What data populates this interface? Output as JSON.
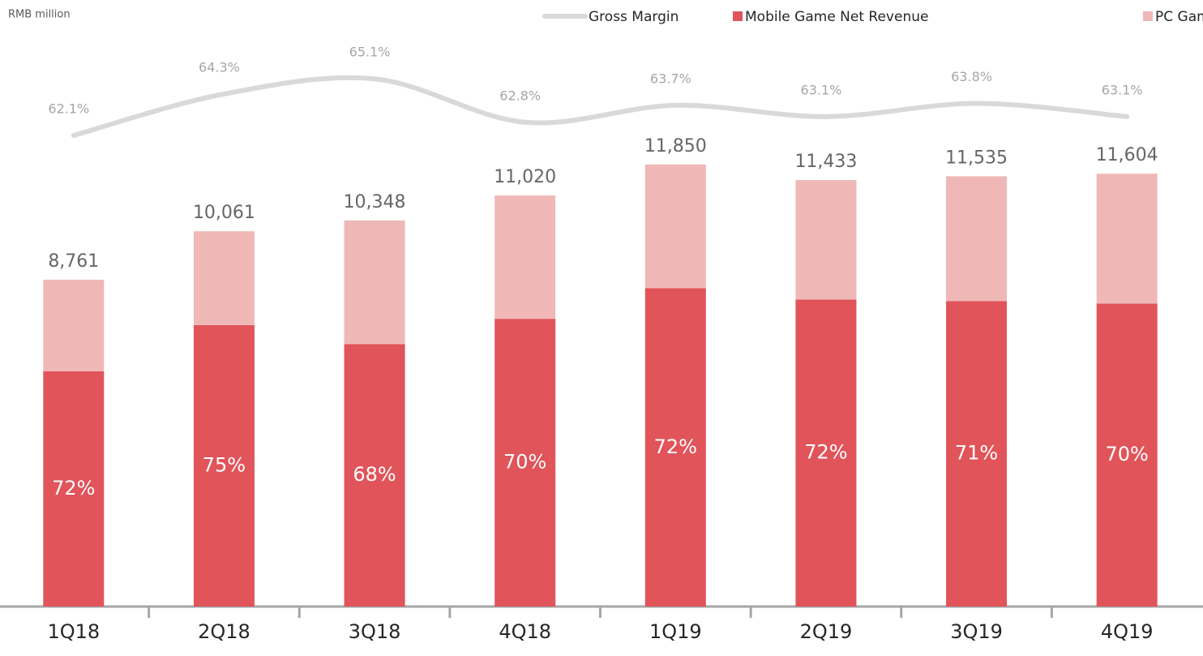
{
  "chart_data": {
    "type": "bar",
    "subtitle": "RMB million",
    "categories": [
      "1Q18",
      "2Q18",
      "3Q18",
      "4Q18",
      "1Q19",
      "2Q19",
      "3Q19",
      "4Q19"
    ],
    "series": [
      {
        "name": "Mobile Game Net Revenue",
        "color": "#e0545a",
        "values": [
          6308,
          7546,
          7037,
          7714,
          8532,
          8232,
          8190,
          8123
        ]
      },
      {
        "name": "PC Game Net Revenue",
        "color": "#efb8b7",
        "values": [
          2453,
          2515,
          3311,
          3306,
          3318,
          3201,
          3345,
          3481
        ]
      },
      {
        "name": "Gross Margin",
        "color": "#d9d9d9",
        "type": "line",
        "axis": "y2",
        "values": [
          62.1,
          64.3,
          65.1,
          62.8,
          63.7,
          63.1,
          63.8,
          63.1
        ],
        "value_labels": [
          "62.1%",
          "64.3%",
          "65.1%",
          "62.8%",
          "63.7%",
          "63.1%",
          "63.8%",
          "63.1%"
        ]
      }
    ],
    "totals": {
      "values": [
        8761,
        10061,
        10348,
        11020,
        11850,
        11433,
        11535,
        11604
      ],
      "value_labels": [
        "8,761",
        "10,061",
        "10,348",
        "11,020",
        "11,850",
        "11,433",
        "11,535",
        "11,604"
      ]
    },
    "mobile_share": {
      "values": [
        72,
        75,
        68,
        70,
        72,
        72,
        71,
        70
      ],
      "value_labels": [
        "72%",
        "75%",
        "68%",
        "70%",
        "72%",
        "72%",
        "71%",
        "70%"
      ]
    },
    "ylim": [
      0,
      16260
    ],
    "y2lim": [
      60,
      67
    ]
  }
}
